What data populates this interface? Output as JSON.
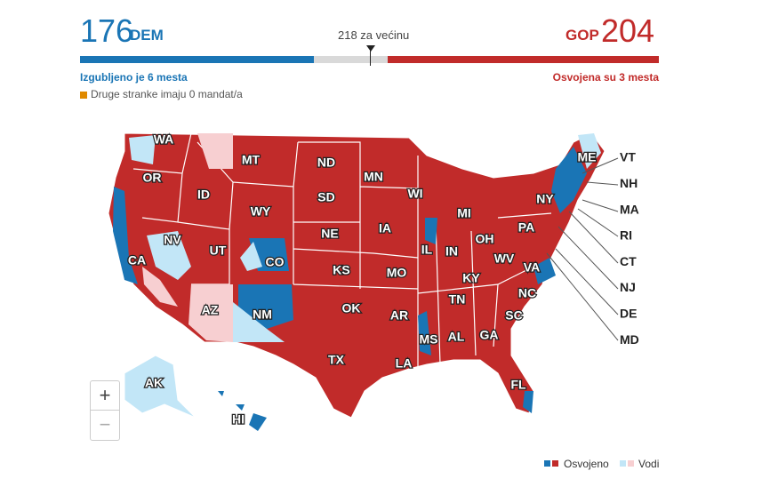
{
  "header": {
    "dem_count": 176,
    "dem_label": "DEM",
    "majority": "218 za većinu",
    "gop_label": "GOP",
    "gop_count": 204,
    "dem_note": "Izgubljeno je 6 mesta",
    "gop_note": "Osvojena su 3 mesta",
    "others": "Druge stranke imaju 0 mandat/a"
  },
  "map": {
    "states": [
      "WA",
      "OR",
      "CA",
      "NV",
      "ID",
      "MT",
      "WY",
      "UT",
      "AZ",
      "NM",
      "CO",
      "ND",
      "SD",
      "NE",
      "KS",
      "OK",
      "TX",
      "MN",
      "IA",
      "MO",
      "AR",
      "LA",
      "WI",
      "IL",
      "MI",
      "IN",
      "OH",
      "KY",
      "TN",
      "MS",
      "AL",
      "GA",
      "FL",
      "SC",
      "NC",
      "VA",
      "WV",
      "PA",
      "NY",
      "ME",
      "AK",
      "HI"
    ],
    "callouts": [
      "VT",
      "NH",
      "MA",
      "RI",
      "CT",
      "NJ",
      "DE",
      "MD"
    ],
    "zoom_in": "+",
    "zoom_out": "−"
  },
  "legend": {
    "won": "Osvojeno",
    "leading": "Vodi"
  }
}
